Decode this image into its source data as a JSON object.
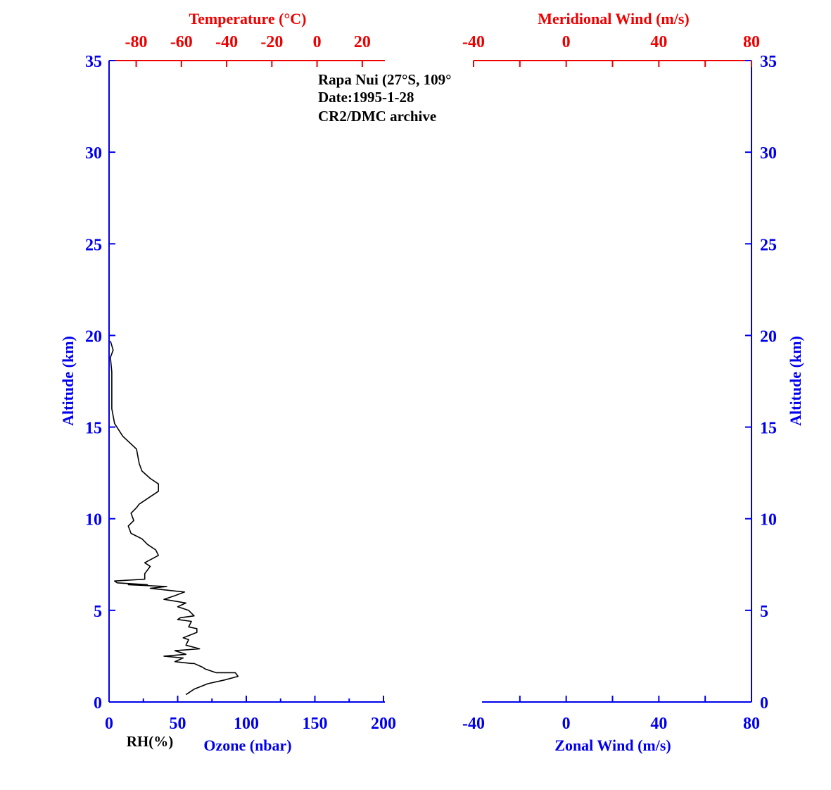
{
  "chart_data": [
    {
      "type": "line",
      "panel": "left",
      "annotations": [
        "Rapa Nui (27°S, 109°",
        "Date:1995-1-28",
        "CR2/DMC archive"
      ],
      "top_axis": {
        "label": "Temperature (°C)",
        "ticks": [
          "-80",
          "-60",
          "-40",
          "-20",
          "0",
          "20"
        ],
        "tick_values": [
          -80,
          -60,
          -40,
          -20,
          0,
          20
        ],
        "range": [
          -92,
          30
        ]
      },
      "bottom_axis": {
        "label": "Ozone (nbar)",
        "ticks": [
          "0",
          "50",
          "100",
          "150",
          "200"
        ],
        "tick_values": [
          0,
          50,
          100,
          150,
          200
        ],
        "range": [
          0,
          200
        ]
      },
      "rh_label": "RH(%)",
      "left_axis": {
        "label": "Altitude (km)",
        "ticks": [
          "0",
          "5",
          "10",
          "15",
          "20",
          "25",
          "30",
          "35"
        ],
        "tick_values": [
          0,
          5,
          10,
          15,
          20,
          25,
          30,
          35
        ],
        "range": [
          0,
          35
        ]
      },
      "series": [
        {
          "x_axis": "bottom",
          "color": "#000000",
          "x": [
            56,
            62,
            72,
            84,
            94,
            92,
            78,
            70,
            68,
            62,
            60,
            48,
            54,
            40,
            56,
            48,
            66,
            56,
            58,
            54,
            64,
            64,
            58,
            60,
            50,
            52,
            62,
            58,
            50,
            56,
            40,
            48,
            55,
            30,
            42,
            14,
            28,
            6,
            4,
            26,
            26,
            30,
            26,
            36,
            34,
            28,
            24,
            16,
            14,
            18,
            16,
            20,
            22,
            36,
            36,
            30,
            24,
            22,
            20,
            10,
            4,
            2,
            2,
            2,
            1,
            3,
            1
          ],
          "y": [
            0.4,
            0.7,
            1.0,
            1.2,
            1.4,
            1.6,
            1.6,
            1.8,
            1.9,
            2.1,
            2.1,
            2.2,
            2.4,
            2.5,
            2.6,
            2.8,
            2.9,
            3.1,
            3.4,
            3.5,
            3.8,
            4.0,
            4.1,
            4.4,
            4.5,
            4.6,
            4.7,
            5.0,
            5.2,
            5.4,
            5.6,
            5.8,
            6.0,
            6.2,
            6.3,
            6.4,
            6.4,
            6.5,
            6.6,
            6.7,
            7.0,
            7.4,
            7.6,
            8.0,
            8.3,
            8.6,
            8.9,
            9.2,
            9.6,
            9.9,
            10.3,
            10.6,
            10.8,
            11.5,
            11.9,
            12.2,
            12.6,
            13.0,
            13.8,
            14.5,
            15.2,
            16.0,
            17.0,
            18.0,
            18.8,
            19.2,
            19.7
          ]
        }
      ]
    },
    {
      "type": "line",
      "panel": "right",
      "top_axis": {
        "label": "Meridional Wind (m/s)",
        "ticks": [
          "-40",
          "0",
          "40",
          "80"
        ],
        "tick_values": [
          -40,
          0,
          40,
          80
        ],
        "range": [
          -40,
          80
        ]
      },
      "bottom_axis": {
        "label": "Zonal Wind (m/s)",
        "ticks": [
          "-40",
          "0",
          "40",
          "80"
        ],
        "tick_values": [
          -40,
          0,
          40,
          80
        ],
        "range": [
          -40,
          80
        ]
      },
      "right_axis": {
        "label": "Altitude (km)",
        "ticks": [
          "0",
          "5",
          "10",
          "15",
          "20",
          "25",
          "30",
          "35"
        ],
        "tick_values": [
          0,
          5,
          10,
          15,
          20,
          25,
          30,
          35
        ],
        "range": [
          0,
          35
        ]
      },
      "series": []
    }
  ]
}
